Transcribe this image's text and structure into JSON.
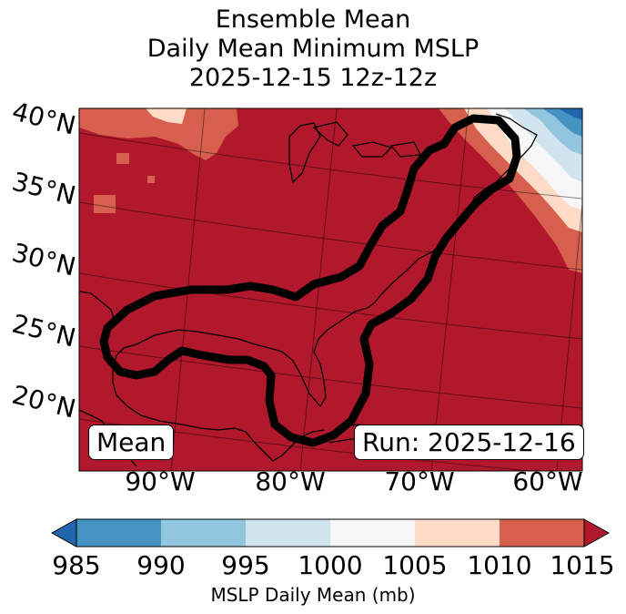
{
  "title": {
    "line1": "Ensemble Mean",
    "line2": "Daily Mean Minimum MSLP",
    "line3": "2025-12-15 12z-12z"
  },
  "map": {
    "lat_labels": [
      "40°N",
      "35°N",
      "30°N",
      "25°N",
      "20°N"
    ],
    "lon_labels": [
      "90°W",
      "80°W",
      "70°W",
      "60°W"
    ],
    "mean_box": "Mean",
    "run_box": "Run: 2025-12-16",
    "contour": "thick black contour enclosing southeastern US, Gulf of Mexico and US east coast",
    "background_color": "#b2182b"
  },
  "colorbar": {
    "ticks": [
      "985",
      "990",
      "995",
      "1000",
      "1005",
      "1010",
      "1015"
    ],
    "colors": [
      "#2166ac",
      "#4393c3",
      "#92c5de",
      "#d1e5f0",
      "#f7f7f7",
      "#fddbc7",
      "#d6604d",
      "#b2182b"
    ],
    "label": "MSLP Daily Mean (mb)"
  }
}
